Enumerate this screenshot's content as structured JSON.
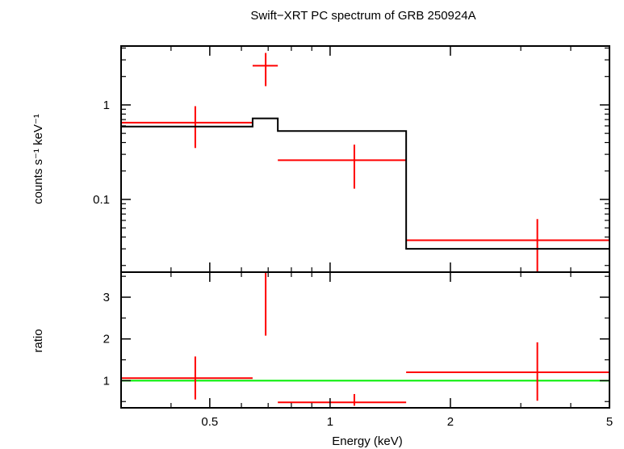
{
  "chart_data": [
    {
      "type": "scatter",
      "title": "Swift−XRT PC spectrum of GRB 250924A",
      "xlabel": "",
      "ylabel": "counts s⁻¹ keV⁻¹",
      "xscale": "log",
      "yscale": "log",
      "xlim": [
        0.3,
        5
      ],
      "ylim": [
        0.017,
        4.2
      ],
      "yticks": [
        {
          "value": 0.1,
          "label": "0.1"
        },
        {
          "value": 1,
          "label": "1"
        }
      ],
      "series": [
        {
          "name": "",
          "kind": "data",
          "color": "#ff0000",
          "points": [
            {
              "x": 0.46,
              "xlo": 0.3,
              "xhi": 0.64,
              "y": 0.65,
              "ylo": 0.35,
              "yhi": 0.97
            },
            {
              "x": 0.69,
              "xlo": 0.64,
              "xhi": 0.74,
              "y": 2.6,
              "ylo": 1.58,
              "yhi": 3.55
            },
            {
              "x": 1.15,
              "xlo": 0.74,
              "xhi": 1.55,
              "y": 0.26,
              "ylo": 0.13,
              "yhi": 0.38
            },
            {
              "x": 3.3,
              "xlo": 1.55,
              "xhi": 5.0,
              "y": 0.037,
              "ylo": 0.017,
              "yhi": 0.062
            }
          ]
        },
        {
          "name": "",
          "kind": "model",
          "color": "#000000",
          "steps": [
            {
              "xlo": 0.3,
              "xhi": 0.64,
              "y": 0.59
            },
            {
              "xlo": 0.64,
              "xhi": 0.74,
              "y": 0.72
            },
            {
              "xlo": 0.74,
              "xhi": 1.55,
              "y": 0.53
            },
            {
              "xlo": 1.55,
              "xhi": 5.0,
              "y": 0.03
            }
          ]
        }
      ]
    },
    {
      "type": "scatter",
      "title": "",
      "xlabel": "Energy (keV)",
      "ylabel": "ratio",
      "xscale": "log",
      "yscale": "linear",
      "xlim": [
        0.3,
        5
      ],
      "ylim": [
        0.35,
        3.6
      ],
      "xticks": [
        {
          "value": 0.5,
          "label": "0.5"
        },
        {
          "value": 1,
          "label": "1"
        },
        {
          "value": 2,
          "label": "2"
        },
        {
          "value": 5,
          "label": "5"
        }
      ],
      "yticks": [
        {
          "value": 1,
          "label": "1"
        },
        {
          "value": 2,
          "label": "2"
        },
        {
          "value": 3,
          "label": "3"
        }
      ],
      "reference_line": {
        "y": 1,
        "color": "#00ee00"
      },
      "series": [
        {
          "name": "",
          "kind": "data",
          "color": "#ff0000",
          "points": [
            {
              "x": 0.46,
              "xlo": 0.3,
              "xhi": 0.64,
              "y": 1.06,
              "ylo": 0.55,
              "yhi": 1.58
            },
            {
              "x": 0.69,
              "xlo": 0.64,
              "xhi": 0.74,
              "y": 3.6,
              "ylo": 2.08,
              "yhi": 3.6
            },
            {
              "x": 1.15,
              "xlo": 0.74,
              "xhi": 1.55,
              "y": 0.48,
              "ylo": 0.4,
              "yhi": 0.68
            },
            {
              "x": 3.3,
              "xlo": 1.55,
              "xhi": 5.0,
              "y": 1.2,
              "ylo": 0.52,
              "yhi": 1.92
            }
          ]
        }
      ]
    }
  ]
}
